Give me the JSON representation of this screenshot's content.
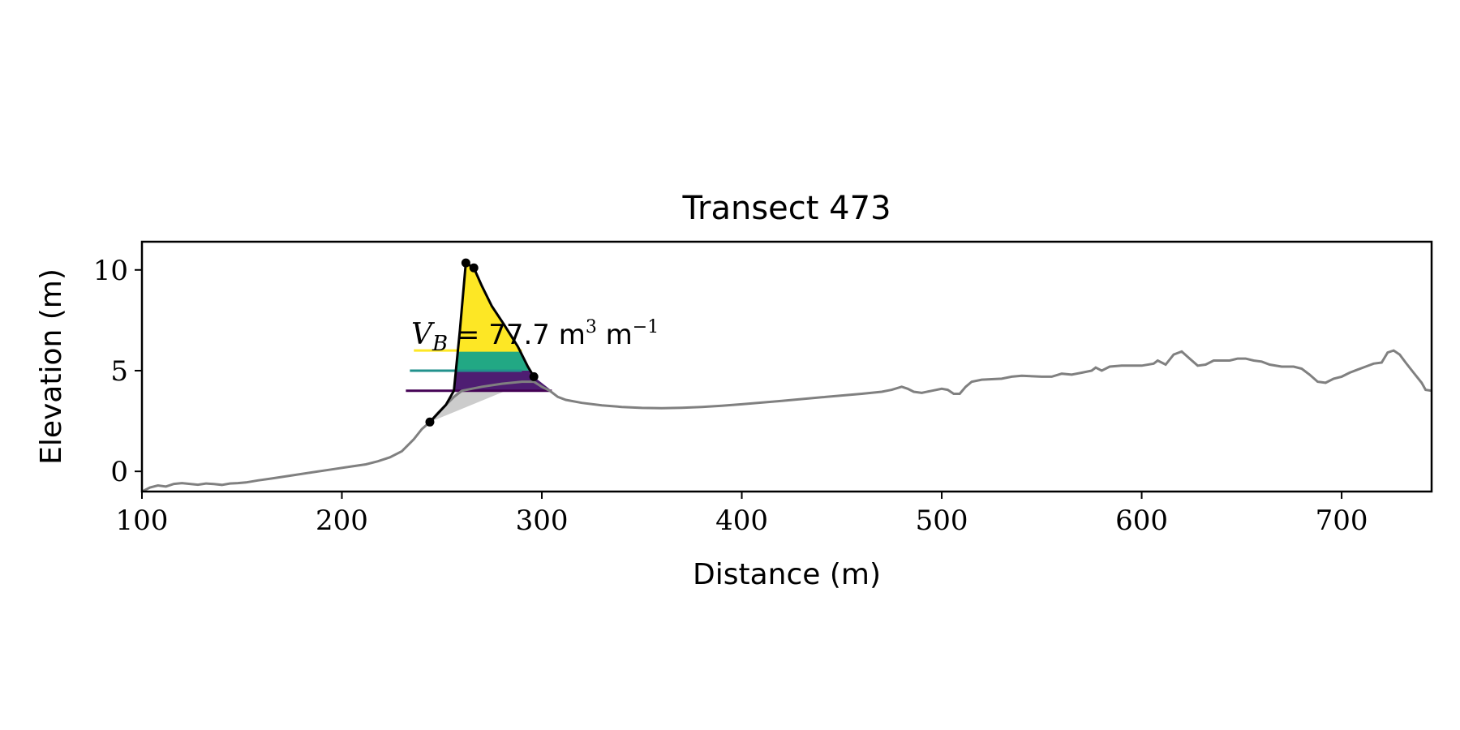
{
  "chart_data": {
    "type": "line",
    "title": "Transect 473",
    "xlabel": "Distance (m)",
    "ylabel": "Elevation (m)",
    "xlim": [
      100,
      745
    ],
    "ylim": [
      -1.0,
      11.4
    ],
    "x_ticks": [
      100,
      200,
      300,
      400,
      500,
      600,
      700
    ],
    "y_ticks": [
      0,
      5,
      10
    ],
    "grid": false,
    "annotation": {
      "symbol": "V",
      "subscript": "B",
      "equals": " = ",
      "value": "77.7",
      "unit": "m",
      "unit_exp": "3",
      "unit2": "m",
      "unit2_exp": "−1"
    },
    "profile": {
      "color": "#808080",
      "points": [
        [
          100,
          -1.0
        ],
        [
          104,
          -0.8
        ],
        [
          108,
          -0.7
        ],
        [
          112,
          -0.75
        ],
        [
          116,
          -0.62
        ],
        [
          120,
          -0.58
        ],
        [
          124,
          -0.62
        ],
        [
          128,
          -0.66
        ],
        [
          132,
          -0.6
        ],
        [
          136,
          -0.63
        ],
        [
          140,
          -0.67
        ],
        [
          144,
          -0.6
        ],
        [
          148,
          -0.58
        ],
        [
          152,
          -0.55
        ],
        [
          158,
          -0.45
        ],
        [
          165,
          -0.35
        ],
        [
          175,
          -0.2
        ],
        [
          185,
          -0.05
        ],
        [
          195,
          0.1
        ],
        [
          205,
          0.25
        ],
        [
          212,
          0.35
        ],
        [
          218,
          0.5
        ],
        [
          224,
          0.7
        ],
        [
          230,
          1.0
        ],
        [
          236,
          1.6
        ],
        [
          240,
          2.1
        ],
        [
          244,
          2.45
        ],
        [
          248,
          2.9
        ],
        [
          252,
          3.3
        ],
        [
          256,
          3.7
        ],
        [
          260,
          4.0
        ],
        [
          270,
          4.2
        ],
        [
          280,
          4.35
        ],
        [
          290,
          4.45
        ],
        [
          296,
          4.45
        ],
        [
          300,
          4.2
        ],
        [
          304,
          4.0
        ],
        [
          308,
          3.7
        ],
        [
          312,
          3.55
        ],
        [
          320,
          3.4
        ],
        [
          330,
          3.28
        ],
        [
          340,
          3.2
        ],
        [
          350,
          3.15
        ],
        [
          360,
          3.14
        ],
        [
          370,
          3.16
        ],
        [
          380,
          3.2
        ],
        [
          390,
          3.26
        ],
        [
          400,
          3.33
        ],
        [
          420,
          3.5
        ],
        [
          440,
          3.68
        ],
        [
          460,
          3.85
        ],
        [
          470,
          3.95
        ],
        [
          475,
          4.05
        ],
        [
          480,
          4.2
        ],
        [
          483,
          4.1
        ],
        [
          486,
          3.95
        ],
        [
          490,
          3.9
        ],
        [
          495,
          4.0
        ],
        [
          500,
          4.1
        ],
        [
          503,
          4.05
        ],
        [
          506,
          3.85
        ],
        [
          509,
          3.85
        ],
        [
          512,
          4.2
        ],
        [
          515,
          4.45
        ],
        [
          520,
          4.55
        ],
        [
          530,
          4.6
        ],
        [
          535,
          4.7
        ],
        [
          540,
          4.75
        ],
        [
          550,
          4.7
        ],
        [
          555,
          4.7
        ],
        [
          560,
          4.85
        ],
        [
          565,
          4.8
        ],
        [
          570,
          4.9
        ],
        [
          575,
          5.0
        ],
        [
          577,
          5.15
        ],
        [
          580,
          5.0
        ],
        [
          584,
          5.2
        ],
        [
          590,
          5.25
        ],
        [
          600,
          5.25
        ],
        [
          606,
          5.35
        ],
        [
          608,
          5.5
        ],
        [
          612,
          5.3
        ],
        [
          616,
          5.8
        ],
        [
          620,
          5.95
        ],
        [
          624,
          5.6
        ],
        [
          628,
          5.25
        ],
        [
          632,
          5.3
        ],
        [
          636,
          5.5
        ],
        [
          640,
          5.5
        ],
        [
          644,
          5.5
        ],
        [
          648,
          5.6
        ],
        [
          652,
          5.6
        ],
        [
          656,
          5.5
        ],
        [
          660,
          5.45
        ],
        [
          664,
          5.3
        ],
        [
          670,
          5.2
        ],
        [
          676,
          5.2
        ],
        [
          680,
          5.1
        ],
        [
          684,
          4.8
        ],
        [
          688,
          4.45
        ],
        [
          692,
          4.4
        ],
        [
          696,
          4.6
        ],
        [
          700,
          4.7
        ],
        [
          704,
          4.9
        ],
        [
          708,
          5.05
        ],
        [
          712,
          5.2
        ],
        [
          716,
          5.35
        ],
        [
          720,
          5.4
        ],
        [
          723,
          5.9
        ],
        [
          726,
          6.0
        ],
        [
          729,
          5.8
        ],
        [
          732,
          5.4
        ],
        [
          736,
          4.9
        ],
        [
          740,
          4.4
        ],
        [
          742,
          4.05
        ],
        [
          745,
          4.0
        ]
      ]
    },
    "dune_outline": {
      "color": "#000000",
      "points": [
        [
          244,
          2.45
        ],
        [
          252,
          3.3
        ],
        [
          256,
          4.0
        ],
        [
          259,
          7.0
        ],
        [
          262,
          10.35
        ],
        [
          266,
          10.1
        ],
        [
          270,
          9.2
        ],
        [
          275,
          8.2
        ],
        [
          281,
          7.3
        ],
        [
          288,
          6.2
        ],
        [
          293,
          5.2
        ],
        [
          296,
          4.7
        ]
      ]
    },
    "markers": [
      [
        244,
        2.45
      ],
      [
        262,
        10.35
      ],
      [
        266,
        10.1
      ],
      [
        296,
        4.7
      ]
    ],
    "base_fill": {
      "color": "#cccccc",
      "points": [
        [
          244,
          2.45
        ],
        [
          258,
          4.0
        ],
        [
          282,
          4.0
        ]
      ]
    },
    "bands": [
      {
        "name": "purple",
        "color": "#440154",
        "fill": "#4e1d72",
        "y_low": 4.0,
        "y_high": 5.0,
        "line_x": [
          232,
          305
        ]
      },
      {
        "name": "teal",
        "color": "#21918c",
        "fill": "#22a884",
        "y_low": 5.0,
        "y_high": 6.0,
        "line_x": [
          234,
          290
        ]
      },
      {
        "name": "yellow",
        "color": "#fde725",
        "fill": "#fde725",
        "y_low": 6.0,
        "y_high": 10.35,
        "line_x": [
          236,
          290
        ]
      }
    ]
  }
}
